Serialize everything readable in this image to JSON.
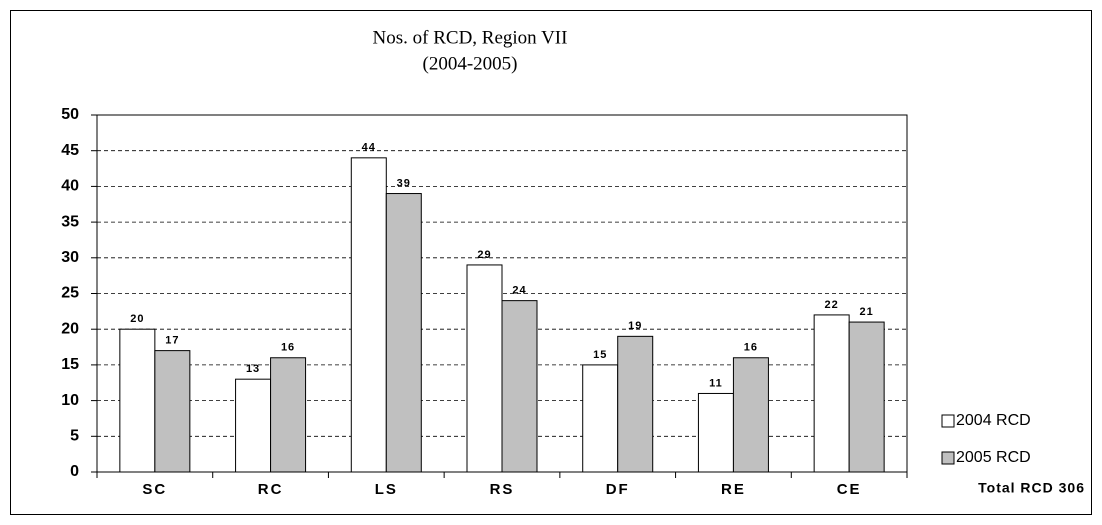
{
  "chart_data": {
    "type": "bar",
    "title": "Nos. of RCD, Region VII",
    "subtitle": "(2004-2005)",
    "categories": [
      "SC",
      "RC",
      "LS",
      "RS",
      "DF",
      "RE",
      "CE"
    ],
    "series": [
      {
        "name": "2004 RCD",
        "color": "#ffffff",
        "values": [
          20,
          13,
          44,
          29,
          15,
          11,
          22
        ]
      },
      {
        "name": "2005 RCD",
        "color": "#c0c0c0",
        "values": [
          17,
          16,
          39,
          24,
          19,
          16,
          21
        ]
      }
    ],
    "ylim": [
      0,
      50
    ],
    "yticks": [
      0,
      5,
      10,
      15,
      20,
      25,
      30,
      35,
      40,
      45,
      50
    ],
    "grid": true,
    "legend": "right",
    "annotation": "Total RCD 306"
  }
}
